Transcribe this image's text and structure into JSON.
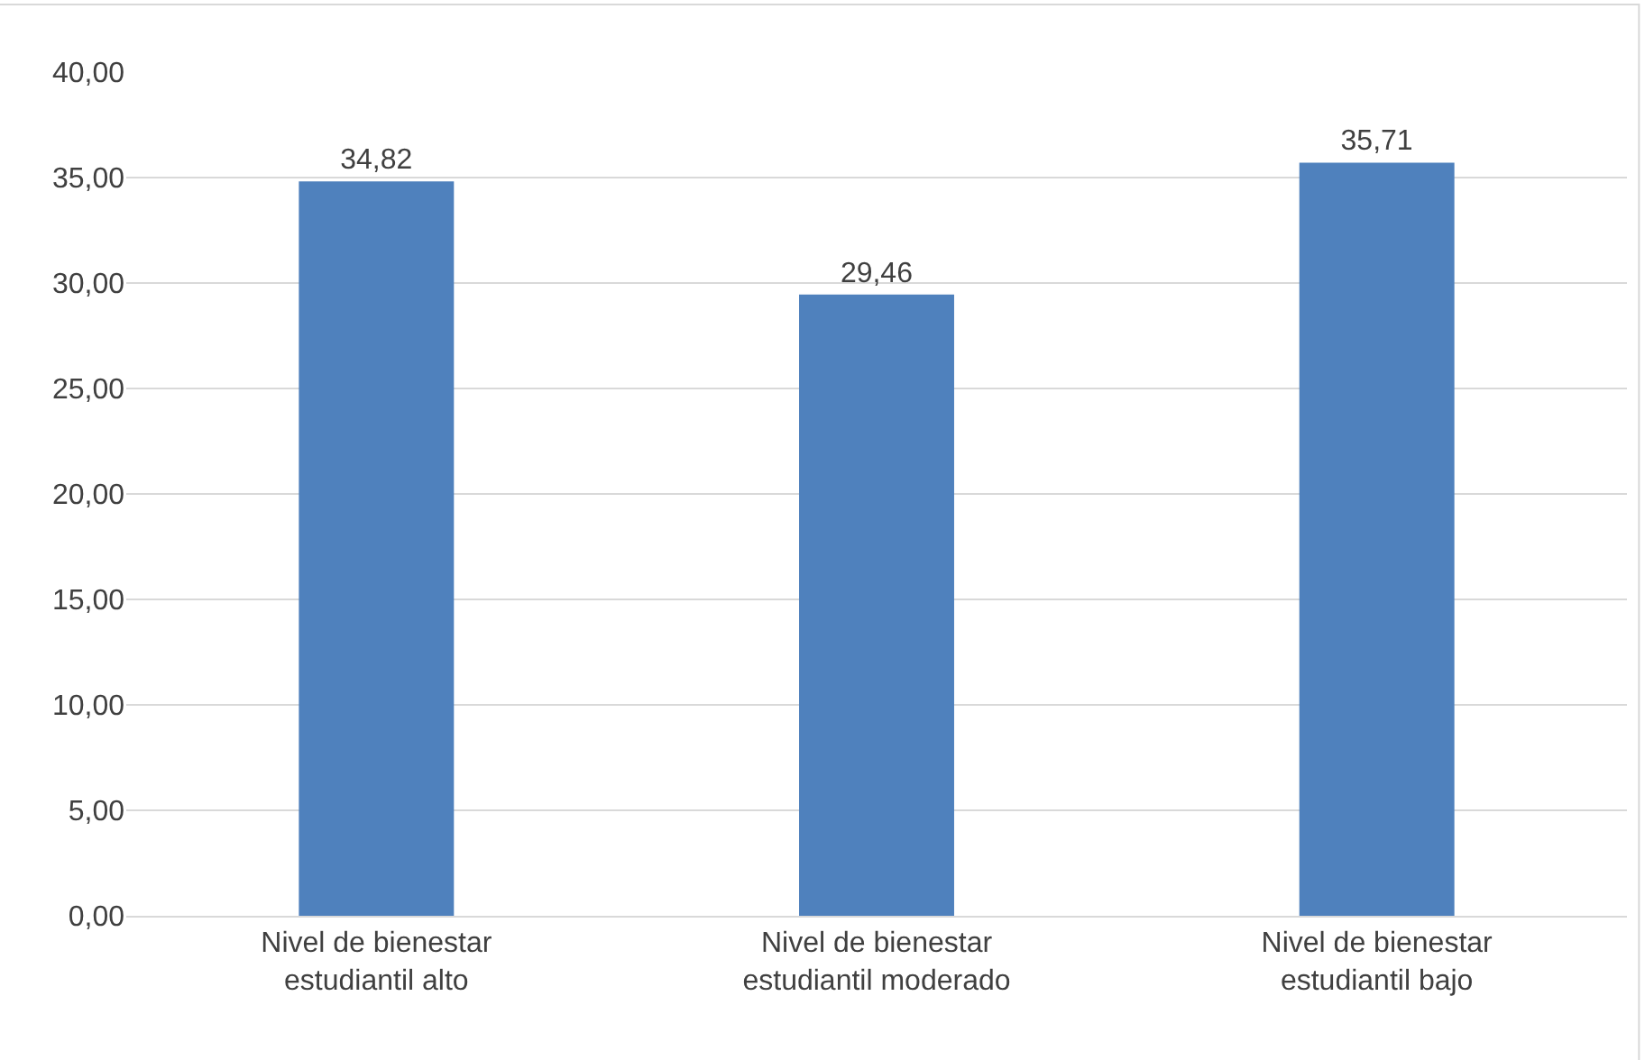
{
  "chart_data": {
    "type": "bar",
    "categories": [
      "Nivel de bienestar estudiantil alto",
      "Nivel de bienestar estudiantil moderado",
      "Nivel de bienestar estudiantil bajo"
    ],
    "values": [
      34.82,
      29.46,
      35.71
    ],
    "value_labels": [
      "34,82",
      "29,46",
      "35,71"
    ],
    "color": "#4f81bd",
    "ylim": [
      0,
      40
    ],
    "yticks": [
      {
        "value": 0,
        "label": "0,00"
      },
      {
        "value": 5,
        "label": "5,00"
      },
      {
        "value": 10,
        "label": "10,00"
      },
      {
        "value": 15,
        "label": "15,00"
      },
      {
        "value": 20,
        "label": "20,00"
      },
      {
        "value": 25,
        "label": "25,00"
      },
      {
        "value": 30,
        "label": "30,00"
      },
      {
        "value": 35,
        "label": "35,00"
      },
      {
        "value": 40,
        "label": "40,00"
      }
    ],
    "grid": "y"
  }
}
